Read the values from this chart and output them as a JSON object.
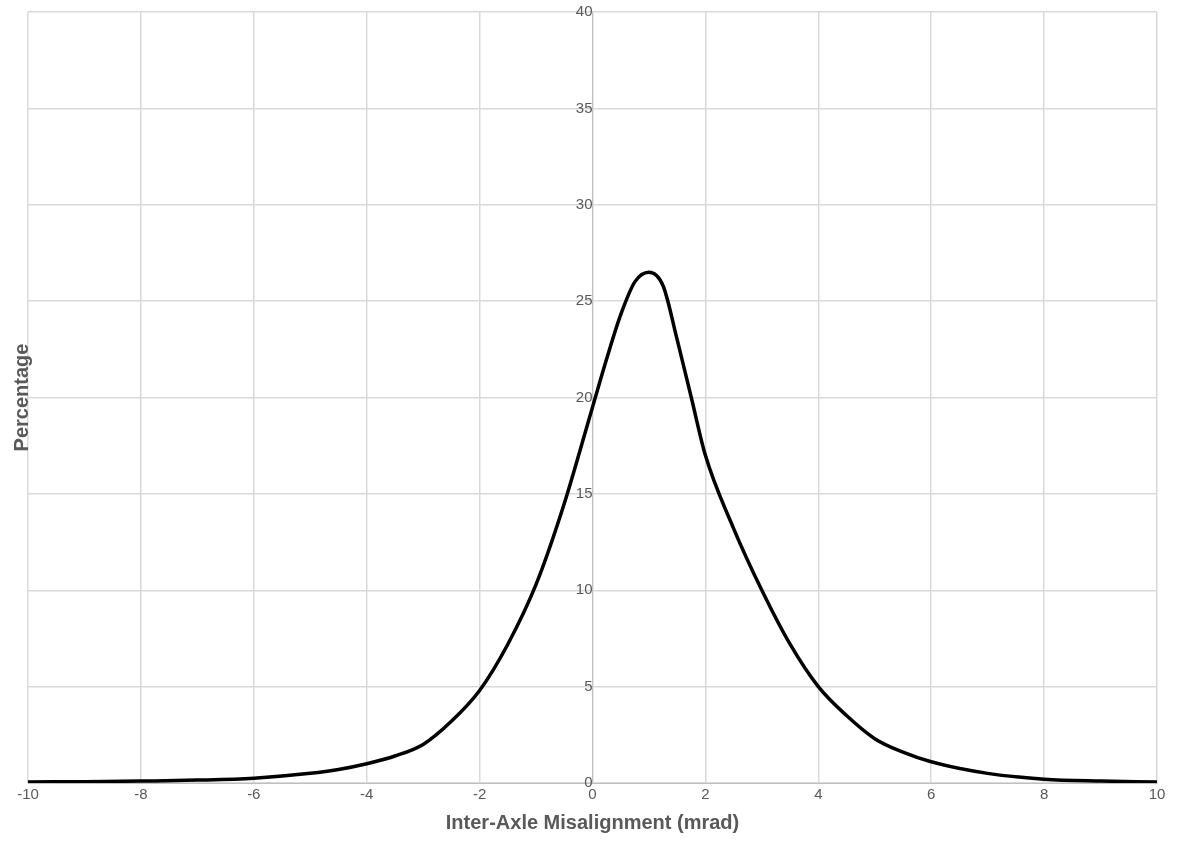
{
  "chart_data": {
    "type": "line",
    "xlabel": "Inter-Axle Misalignment (mrad)",
    "ylabel": "Percentage",
    "x": [
      -10,
      -9,
      -8,
      -7,
      -6,
      -5,
      -4.5,
      -4,
      -3.5,
      -3,
      -2.5,
      -2,
      -1.5,
      -1,
      -0.5,
      0,
      0.25,
      0.5,
      0.75,
      1,
      1.25,
      1.5,
      1.75,
      2,
      2.5,
      3,
      3.5,
      4,
      4.5,
      5,
      5.5,
      6,
      7,
      8,
      9,
      10
    ],
    "series": [
      {
        "color": "#000000",
        "values": [
          0.05,
          0.07,
          0.1,
          0.15,
          0.25,
          0.5,
          0.7,
          1.0,
          1.4,
          2.0,
          3.2,
          4.8,
          7.2,
          10.3,
          14.5,
          19.5,
          22,
          24.3,
          26,
          26.5,
          25.8,
          23,
          20,
          17,
          13.2,
          10,
          7.2,
          5,
          3.5,
          2.3,
          1.6,
          1.1,
          0.5,
          0.2,
          0.1,
          0.05
        ]
      }
    ],
    "xlim": [
      -10,
      10
    ],
    "xticks": [
      -10,
      -8,
      -6,
      -4,
      -2,
      0,
      2,
      4,
      6,
      8,
      10
    ],
    "ylim": [
      0,
      40
    ],
    "yticks": [
      0,
      5,
      10,
      15,
      20,
      25,
      30,
      35,
      40
    ],
    "grid": true,
    "legend": false,
    "marker": "none",
    "line_style": "solid"
  }
}
